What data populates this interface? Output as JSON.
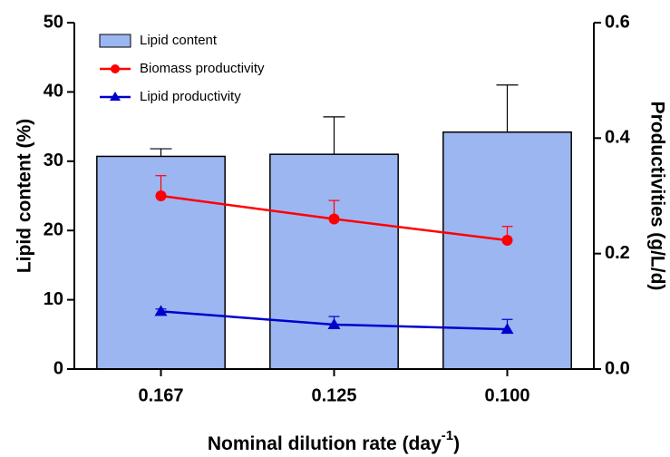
{
  "chart_data": {
    "type": "bar",
    "ylabel": "Lipid content (%)",
    "y2label": "Productivities (g/L/d)",
    "xlabel": {
      "text": "Nominal dilution rate (day",
      "superscript": "-1",
      "suffix": ")"
    },
    "categories": [
      "0.167",
      "0.125",
      "0.100"
    ],
    "series": [
      {
        "name": "Lipid content",
        "type": "bar",
        "color": "#9cb6f2",
        "values": [
          30.7,
          31.0,
          34.2
        ],
        "errors": [
          1.1,
          5.4,
          6.8
        ]
      },
      {
        "name": "Biomass productivity",
        "type": "line",
        "axis": "y2",
        "marker": "circle",
        "color": "#ff0000",
        "values": [
          0.3,
          0.26,
          0.223
        ],
        "errors": [
          0.035,
          0.032,
          0.024
        ]
      },
      {
        "name": "Lipid productivity",
        "type": "line",
        "axis": "y2",
        "marker": "triangle",
        "color": "#0000cc",
        "values": [
          0.1,
          0.077,
          0.069
        ],
        "errors": [
          0.004,
          0.014,
          0.017
        ]
      }
    ],
    "ylim": [
      0,
      50
    ],
    "yticks": [
      0,
      10,
      20,
      30,
      40,
      50
    ],
    "y2lim": [
      0,
      0.6
    ],
    "y2ticks": [
      {
        "value": 0,
        "label": "0.0"
      },
      {
        "value": 0.2,
        "label": "0.2"
      },
      {
        "value": 0.4,
        "label": "0.4"
      },
      {
        "value": 0.6,
        "label": "0.6"
      }
    ],
    "legend": "upper left"
  }
}
